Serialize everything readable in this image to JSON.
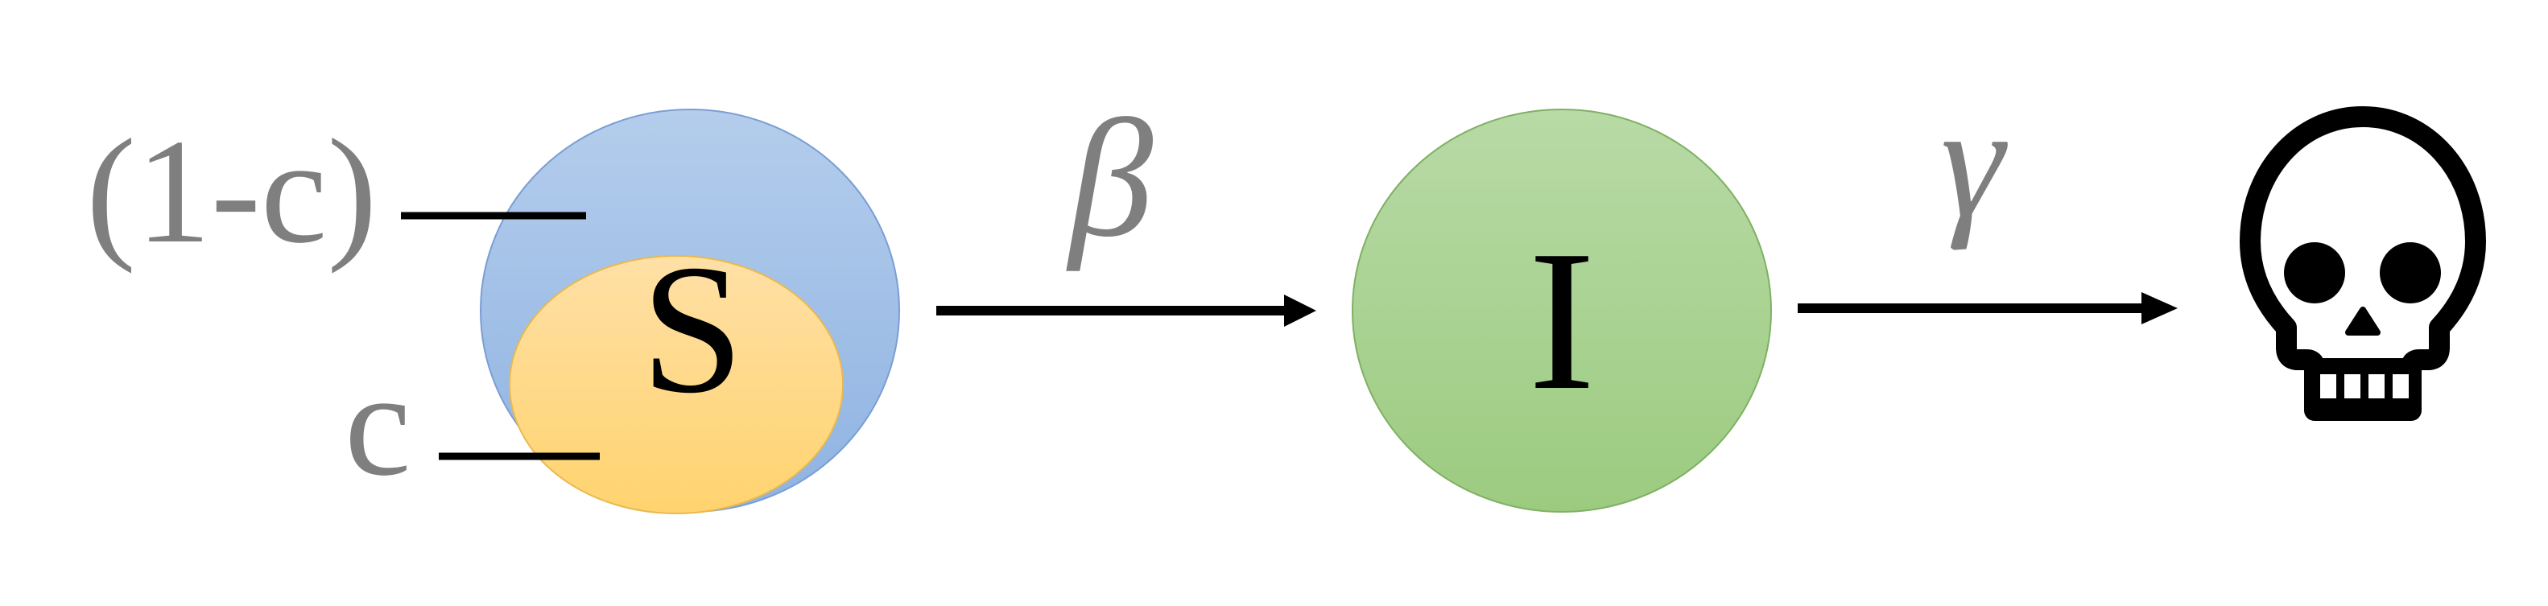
{
  "diagram": {
    "compartment_s": {
      "label": "S",
      "outer_color": "#9dbde6",
      "inner_color": "#ffd57f"
    },
    "compartment_i": {
      "label": "I",
      "color": "#a9d18e"
    },
    "rate_beta": "β",
    "rate_gamma": "γ",
    "fraction_outer_label": "(1-c)",
    "fraction_inner_label": "c",
    "end_icon": "skull-icon",
    "text_gray": "#7f7f7f",
    "line_color": "#000000"
  }
}
